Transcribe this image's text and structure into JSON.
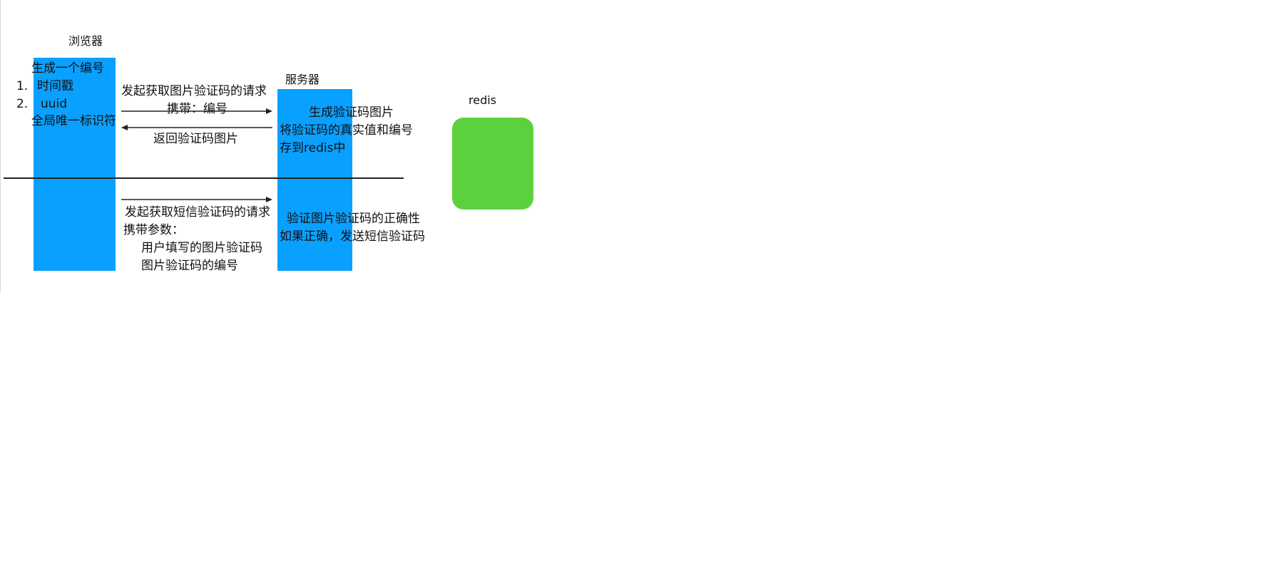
{
  "colors": {
    "lane": "#0aa0ff",
    "store": "#5dd13d",
    "line": "#222222"
  },
  "browser": {
    "title": "浏览器",
    "note_title": "生成一个编号",
    "items": [
      "1.",
      "时间戳",
      "2.",
      "uuid"
    ],
    "note_footer": "全局唯一标识符"
  },
  "server": {
    "title": "服务器",
    "step1": [
      "生成验证码图片",
      "将验证码的真实值和编号",
      "存到redis中"
    ],
    "step2": [
      "验证图片验证码的正确性",
      "如果正确，发送短信验证码"
    ]
  },
  "redis": {
    "title": "redis"
  },
  "phase1": {
    "request": "发起获取图片验证码的请求",
    "carry": "携带：编号",
    "response": "返回验证码图片"
  },
  "phase2": {
    "request": "发起获取短信验证码的请求",
    "carry": "携带参数：",
    "param1": "用户填写的图片验证码",
    "param2": "图片验证码的编号"
  }
}
